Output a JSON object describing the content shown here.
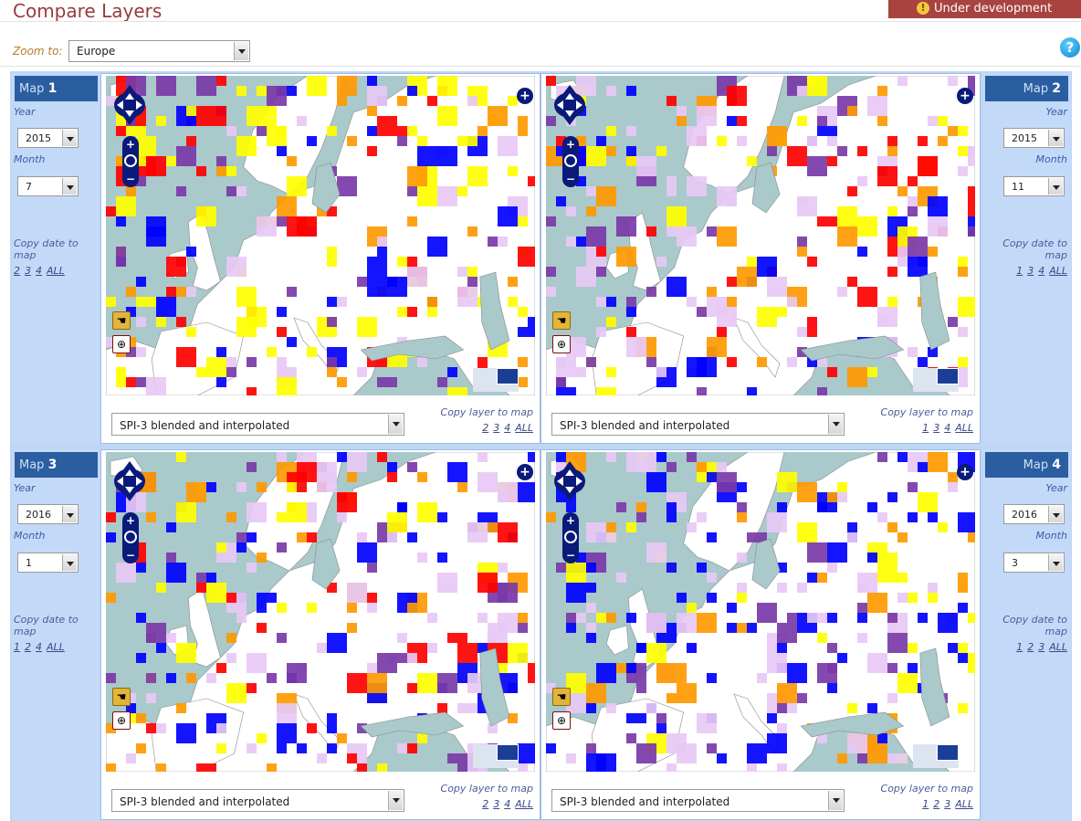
{
  "header": {
    "title": "Compare Layers",
    "status_badge": "Under development",
    "zoom_label": "Zoom to:",
    "zoom_value": "Europe"
  },
  "colors": {
    "title": "#9a3a3a",
    "badge_bg": "#a8433f",
    "panel_header": "#2a5ea0",
    "frame": "#bfd6f5",
    "sea": "#a9c9cb",
    "drought_red": "#ff0000",
    "drought_orange": "#ff9900",
    "drought_yellow": "#ffff00",
    "wet_lilac": "#e7c9f5",
    "wet_purple": "#7a3aa8",
    "wet_blue": "#0000ff"
  },
  "labels": {
    "map": "Map",
    "year": "Year",
    "month": "Month",
    "copy_date": "Copy date to map",
    "copy_layer": "Copy layer to map",
    "all": "ALL"
  },
  "maps": [
    {
      "num": "1",
      "year": "2015",
      "month": "7",
      "layer": "SPI-3 blended and interpolated",
      "date_links": [
        "2",
        "3",
        "4"
      ],
      "layer_links": [
        "2",
        "3",
        "4"
      ]
    },
    {
      "num": "2",
      "year": "2015",
      "month": "11",
      "layer": "SPI-3 blended and interpolated",
      "date_links": [
        "1",
        "3",
        "4"
      ],
      "layer_links": [
        "1",
        "3",
        "4"
      ]
    },
    {
      "num": "3",
      "year": "2016",
      "month": "1",
      "layer": "SPI-3 blended and interpolated",
      "date_links": [
        "1",
        "2",
        "4"
      ],
      "layer_links": [
        "2",
        "3",
        "4"
      ]
    },
    {
      "num": "4",
      "year": "2016",
      "month": "3",
      "layer": "SPI-3 blended and interpolated",
      "date_links": [
        "1",
        "2",
        "3"
      ],
      "layer_links": [
        "1",
        "2",
        "3"
      ]
    }
  ]
}
